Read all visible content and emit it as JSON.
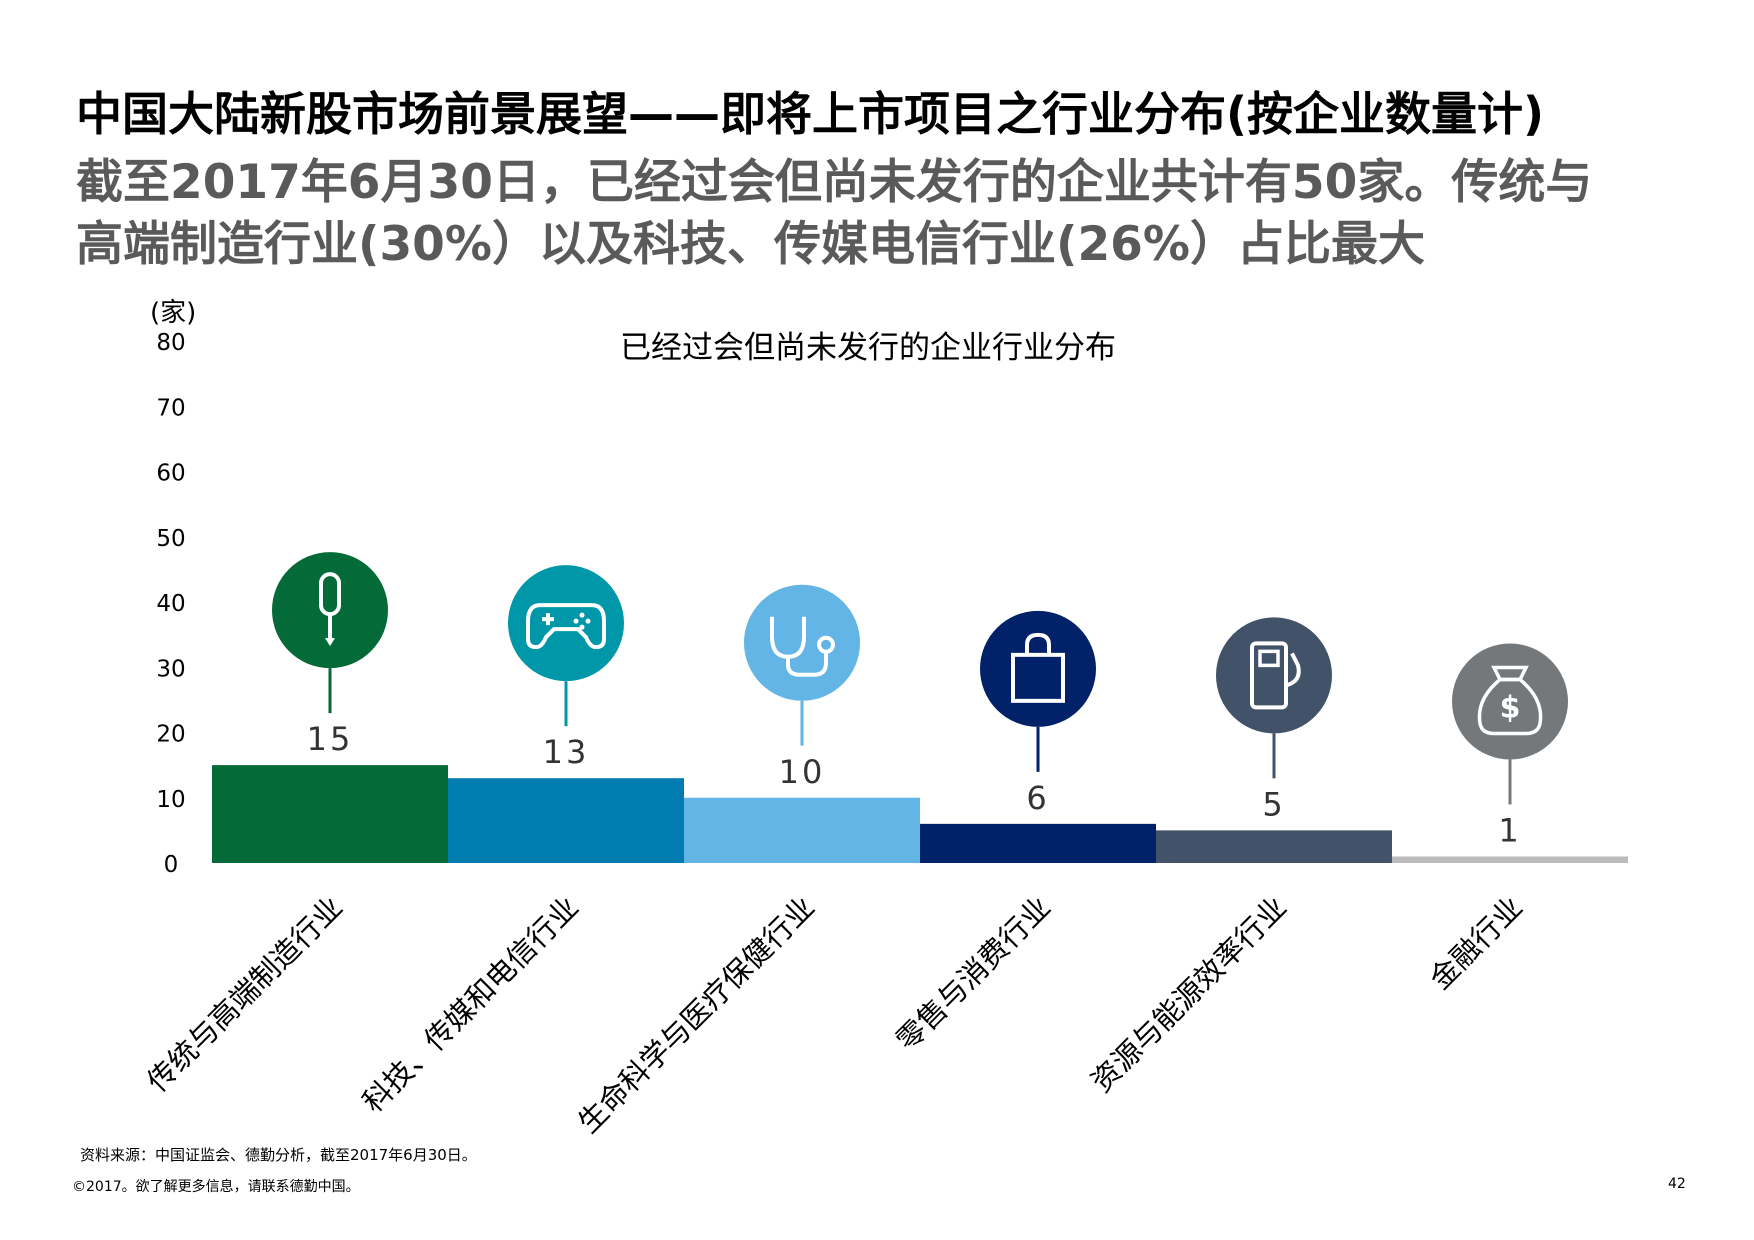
{
  "page": {
    "title": "中国大陆新股市场前景展望——即将上市项目之行业分布(按企业数量计)",
    "subtitle_line1": "截至2017年6月30日，已经过会但尚未发行的企业共计有50家。传统与",
    "subtitle_line2": "高端制造行业(30%）以及科技、传媒电信行业(26%）占比最大",
    "source": "资料来源：中国证监会、德勤分析，截至2017年6月30日。",
    "copyright": "©2017。欲了解更多信息，请联系德勤中国。",
    "page_number": "42"
  },
  "chart_data": {
    "type": "bar",
    "title": "已经过会但尚未发行的企业行业分布",
    "ylabel": "(家)",
    "xlabel": "",
    "ylim": [
      0,
      80
    ],
    "yticks": [
      0,
      10,
      20,
      30,
      40,
      50,
      60,
      70,
      80
    ],
    "grid": false,
    "categories": [
      "传统与高端制造行业",
      "科技、传媒和电信行业",
      "生命科学与医疗保健行业",
      "零售与消费行业",
      "资源与能源效率行业",
      "金融行业"
    ],
    "values": [
      15,
      13,
      10,
      6,
      5,
      1
    ],
    "data_labels": [
      "15",
      "13",
      "10",
      "6",
      "5",
      "1"
    ],
    "colors": [
      "#046a38",
      "#007cb0",
      "#62b5e5",
      "#012169",
      "#425369",
      "#bbbcbc"
    ],
    "icon_colors": [
      "#046a38",
      "#0097a9",
      "#62b5e5",
      "#012169",
      "#425369",
      "#75787b"
    ],
    "icons": [
      "screwdriver-icon",
      "gamepad-icon",
      "stethoscope-icon",
      "shopping-bag-icon",
      "fuel-pump-icon",
      "money-bag-icon"
    ]
  }
}
